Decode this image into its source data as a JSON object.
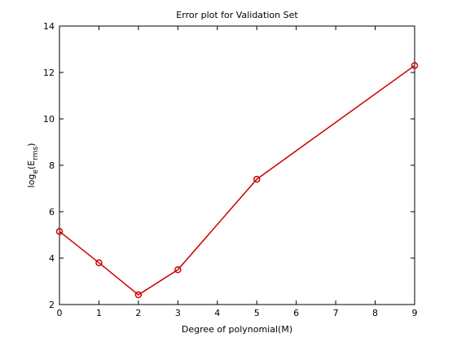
{
  "chart_data": {
    "type": "line",
    "title": "Error plot for Validation Set",
    "xlabel": "Degree of polynomial(M)",
    "ylabel_parts": {
      "base": "log",
      "base_sub": "e",
      "open": "(E",
      "sub": "rms",
      "close": ")"
    },
    "xlim": [
      0,
      9
    ],
    "ylim": [
      2,
      14
    ],
    "xticks": [
      0,
      1,
      2,
      3,
      4,
      5,
      6,
      7,
      8,
      9
    ],
    "yticks": [
      2,
      4,
      6,
      8,
      10,
      12,
      14
    ],
    "grid": false,
    "legend": "none",
    "series": [
      {
        "x": [
          0,
          1,
          2,
          3,
          5,
          9
        ],
        "y": [
          5.15,
          3.8,
          2.42,
          3.5,
          7.4,
          12.3
        ],
        "color": "#cc0000",
        "marker": "circle"
      }
    ]
  }
}
